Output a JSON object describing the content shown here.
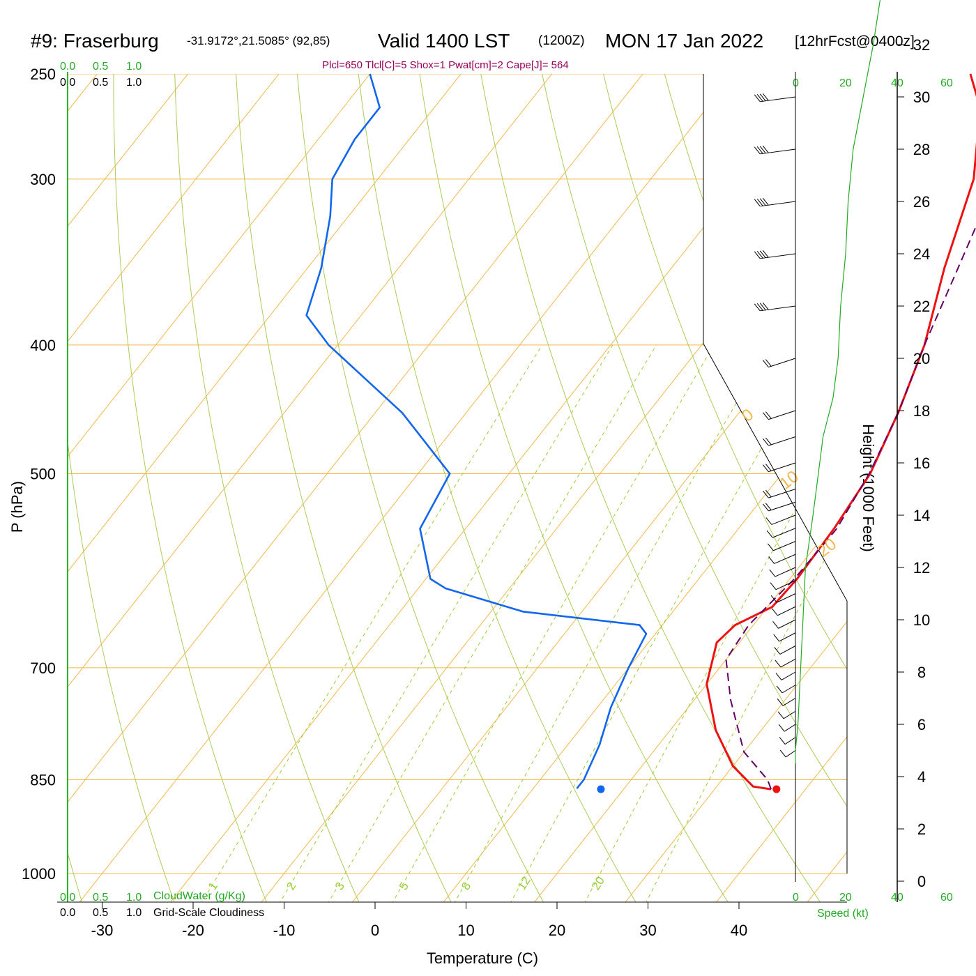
{
  "title": {
    "station": "#9: Fraserburg",
    "coords": "-31.9172°,21.5085° (92,85)",
    "valid": "Valid 1400 LST",
    "utc": "(1200Z)",
    "date": "MON 17 Jan 2022",
    "forecast": "[12hrFcst@0400z]"
  },
  "params": "Plcl=650 Tlcl[C]=5 Shox=1 Pwat[cm]=2 Cape[J]= 564",
  "cloud_scale": {
    "top_green": [
      "0.0",
      "0.5",
      "1.0"
    ],
    "top_black": [
      "0.0",
      "0.5",
      "1.0"
    ],
    "bottom_green": [
      "0.0",
      "0.5",
      "1.0"
    ],
    "bottom_black": [
      "0.0",
      "0.5",
      "1.0"
    ],
    "cloudwater_label": "CloudWater (g/Kg)",
    "cloudiness_label": "Grid-Scale Cloudiness"
  },
  "speed_scale": {
    "top": [
      "0",
      "20",
      "40",
      "60"
    ],
    "bottom": [
      "0",
      "20",
      "40",
      "60"
    ],
    "label": "Speed (kt)"
  },
  "colors": {
    "temperature": "#ee1111",
    "dewpoint": "#1166ee",
    "parcel": "#660066",
    "isotherm": "#f2b84b",
    "dry_adiabat": "#aacc55",
    "mixing_ratio": "#99cc33",
    "speed_profile": "#22aa22",
    "params_text": "#990055"
  },
  "chart_data": {
    "type": "line",
    "subtype": "skew-T log-p sounding",
    "xlabel": "Temperature (C)",
    "ylabel": "P (hPa)",
    "y2label": "Height (1000 Feet)",
    "x_ticks": [
      -30,
      -20,
      -10,
      0,
      10,
      20,
      30,
      40
    ],
    "p_ticks": [
      250,
      300,
      400,
      500,
      700,
      850,
      1000
    ],
    "height_ticks": [
      0,
      2,
      4,
      6,
      8,
      10,
      12,
      14,
      16,
      18,
      20,
      22,
      24,
      26,
      28,
      30,
      32
    ],
    "isotherm_labels_right": [
      "0",
      "10",
      "20",
      "30"
    ],
    "isotherm_labels_left": [
      "10",
      "0",
      "-10",
      "-20",
      "-30"
    ],
    "mixing_ratio_labels": [
      "1",
      "2",
      "3",
      "5",
      "8",
      "12",
      "20"
    ],
    "series": [
      {
        "name": "temperature",
        "points": [
          [
            36.2,
            864
          ],
          [
            34.0,
            860
          ],
          [
            30.0,
            830
          ],
          [
            25.0,
            780
          ],
          [
            20.0,
            720
          ],
          [
            17.5,
            670
          ],
          [
            18.0,
            650
          ],
          [
            20.5,
            630
          ],
          [
            20.8,
            600
          ],
          [
            20.5,
            550
          ],
          [
            19.7,
            500
          ],
          [
            17.5,
            450
          ],
          [
            14.5,
            400
          ],
          [
            10.0,
            350
          ],
          [
            5.5,
            300
          ],
          [
            0.0,
            265
          ],
          [
            -4.0,
            250
          ]
        ]
      },
      {
        "name": "dewpoint",
        "points": [
          [
            14.8,
            863
          ],
          [
            14.8,
            850
          ],
          [
            13.5,
            800
          ],
          [
            11.5,
            750
          ],
          [
            10.0,
            700
          ],
          [
            9.0,
            660
          ],
          [
            7.5,
            650
          ],
          [
            -6.5,
            635
          ],
          [
            -17.0,
            610
          ],
          [
            -19.5,
            600
          ],
          [
            -25.0,
            550
          ],
          [
            -26.5,
            500
          ],
          [
            -37.0,
            450
          ],
          [
            -51.0,
            400
          ],
          [
            -56.0,
            380
          ],
          [
            -58.5,
            350
          ],
          [
            -62.0,
            320
          ],
          [
            -65.0,
            300
          ],
          [
            -66.0,
            280
          ],
          [
            -66.0,
            265
          ],
          [
            -70.0,
            250
          ]
        ]
      },
      {
        "name": "parcel",
        "points": [
          [
            36.2,
            864
          ],
          [
            35.0,
            850
          ],
          [
            30.0,
            810
          ],
          [
            24.0,
            740
          ],
          [
            20.0,
            690
          ],
          [
            19.5,
            650
          ],
          [
            20.5,
            600
          ],
          [
            20.8,
            550
          ],
          [
            19.6,
            500
          ],
          [
            17.5,
            450
          ],
          [
            14.5,
            400
          ],
          [
            11.5,
            350
          ],
          [
            8.0,
            300
          ],
          [
            5.0,
            270
          ],
          [
            2.5,
            250
          ]
        ]
      }
    ],
    "surface_markers": [
      {
        "name": "surface-temperature",
        "t": 36.8,
        "p": 864
      },
      {
        "name": "surface-dewpoint",
        "t": 17.5,
        "p": 864
      }
    ],
    "wind_speed_profile_kt": [
      [
        0,
        4.5
      ],
      [
        0,
        5.0
      ],
      [
        1,
        6
      ],
      [
        2,
        8
      ],
      [
        3,
        10
      ],
      [
        4,
        12
      ],
      [
        7,
        14
      ],
      [
        9,
        15.5
      ],
      [
        11,
        17
      ],
      [
        15,
        18.5
      ],
      [
        17,
        20
      ],
      [
        18,
        22
      ],
      [
        20,
        24
      ],
      [
        21,
        26
      ],
      [
        23,
        28
      ],
      [
        27,
        30
      ],
      [
        31,
        32
      ],
      [
        35,
        34.5
      ]
    ],
    "wind_barb_heights_kft": [
      5,
      5.5,
      6,
      6.5,
      7,
      7.5,
      8,
      8.5,
      9,
      9.5,
      10,
      10.5,
      11,
      11.5,
      12,
      12.5,
      13,
      13.5,
      14,
      14.5,
      15,
      16,
      17,
      18,
      20,
      22,
      24,
      26,
      28,
      30,
      32,
      34
    ],
    "ylim_hpa": [
      1000,
      250
    ],
    "xlim_c": [
      -34,
      35
    ]
  }
}
